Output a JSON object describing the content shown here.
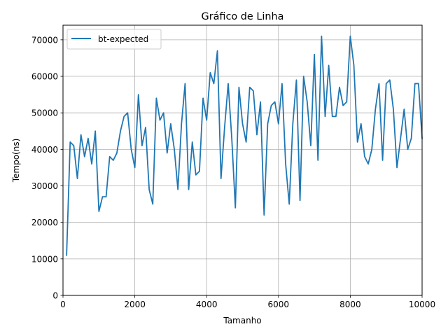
{
  "chart_data": {
    "type": "line",
    "title": "Gráfico de Linha",
    "xlabel": "Tamanho",
    "ylabel": "Tempo(ns)",
    "xlim": [
      0,
      10000
    ],
    "ylim": [
      0,
      74000
    ],
    "xticks": [
      0,
      2000,
      4000,
      6000,
      8000,
      10000
    ],
    "yticks": [
      0,
      10000,
      20000,
      30000,
      40000,
      50000,
      60000,
      70000
    ],
    "grid": true,
    "legend_position": "top-left",
    "series": [
      {
        "name": "bt-expected",
        "color": "#1f77b4",
        "x": [
          100,
          200,
          300,
          400,
          500,
          600,
          700,
          800,
          900,
          1000,
          1100,
          1200,
          1300,
          1400,
          1500,
          1600,
          1700,
          1800,
          1900,
          2000,
          2100,
          2200,
          2300,
          2400,
          2500,
          2600,
          2700,
          2800,
          2900,
          3000,
          3100,
          3200,
          3300,
          3400,
          3500,
          3600,
          3700,
          3800,
          3900,
          4000,
          4100,
          4200,
          4300,
          4400,
          4500,
          4600,
          4700,
          4800,
          4900,
          5000,
          5100,
          5200,
          5300,
          5400,
          5500,
          5600,
          5700,
          5800,
          5900,
          6000,
          6100,
          6200,
          6300,
          6400,
          6500,
          6600,
          6700,
          6800,
          6900,
          7000,
          7100,
          7200,
          7300,
          7400,
          7500,
          7600,
          7700,
          7800,
          7900,
          8000,
          8100,
          8200,
          8300,
          8400,
          8500,
          8600,
          8700,
          8800,
          8900,
          9000,
          9100,
          9200,
          9300,
          9400,
          9500,
          9600,
          9700,
          9800,
          9900,
          10000
        ],
        "y": [
          11000,
          42000,
          41000,
          32000,
          44000,
          38000,
          43000,
          36000,
          45000,
          23000,
          27000,
          27000,
          38000,
          37000,
          39000,
          45000,
          49000,
          50000,
          40000,
          35000,
          55000,
          41000,
          46000,
          29000,
          25000,
          54000,
          48000,
          50000,
          39000,
          47000,
          40000,
          29000,
          47000,
          58000,
          29000,
          42000,
          33000,
          34000,
          54000,
          48000,
          61000,
          58000,
          67000,
          32000,
          46000,
          58000,
          43000,
          24000,
          57000,
          47000,
          42000,
          57000,
          56000,
          44000,
          53000,
          22000,
          47000,
          52000,
          53000,
          47000,
          58000,
          36000,
          25000,
          47000,
          59000,
          26000,
          60000,
          53000,
          41000,
          66000,
          37000,
          71000,
          49000,
          63000,
          49000,
          49000,
          57000,
          52000,
          53000,
          71000,
          63000,
          42000,
          47000,
          38000,
          36000,
          40000,
          51000,
          58000,
          37000,
          58000,
          59000,
          51000,
          35000,
          43000,
          51000,
          40000,
          43000,
          58000,
          58000,
          43000
        ]
      }
    ]
  }
}
